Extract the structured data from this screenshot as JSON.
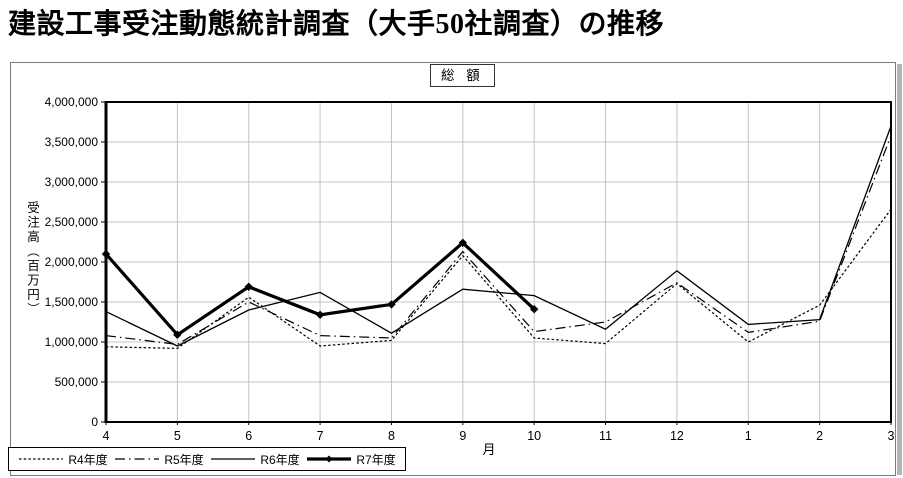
{
  "page_title": "建設工事受注動態統計調査（大手50社調査）の推移",
  "chart_header": "総 額",
  "chart_data": {
    "type": "line",
    "title": "総額",
    "xlabel": "月",
    "ylabel": "受注高（百万円）",
    "ylim": [
      0,
      4000000
    ],
    "ytick_step": 500000,
    "y_ticks": [
      "0",
      "500,000",
      "1,000,000",
      "1,500,000",
      "2,000,000",
      "2,500,000",
      "3,000,000",
      "3,500,000",
      "4,000,000"
    ],
    "categories": [
      "4",
      "5",
      "6",
      "7",
      "8",
      "9",
      "10",
      "11",
      "12",
      "1",
      "2",
      "3"
    ],
    "grid": true,
    "legend_position": "bottom-left",
    "series": [
      {
        "name": "R4年度",
        "style": "dotted",
        "color": "#000000",
        "values": [
          940000,
          920000,
          1560000,
          950000,
          1020000,
          2080000,
          1050000,
          980000,
          1730000,
          1000000,
          1460000,
          2660000
        ]
      },
      {
        "name": "R5年度",
        "style": "dashdot",
        "color": "#000000",
        "values": [
          1080000,
          970000,
          1500000,
          1080000,
          1050000,
          2130000,
          1130000,
          1250000,
          1740000,
          1120000,
          1260000,
          3580000
        ]
      },
      {
        "name": "R6年度",
        "style": "solid",
        "color": "#000000",
        "values": [
          1380000,
          950000,
          1400000,
          1620000,
          1110000,
          1660000,
          1580000,
          1160000,
          1890000,
          1220000,
          1280000,
          3700000
        ]
      },
      {
        "name": "R7年度",
        "style": "thick",
        "color": "#000000",
        "values": [
          2100000,
          1090000,
          1690000,
          1340000,
          1470000,
          2240000,
          1410000,
          null,
          null,
          null,
          null,
          null
        ]
      }
    ]
  }
}
